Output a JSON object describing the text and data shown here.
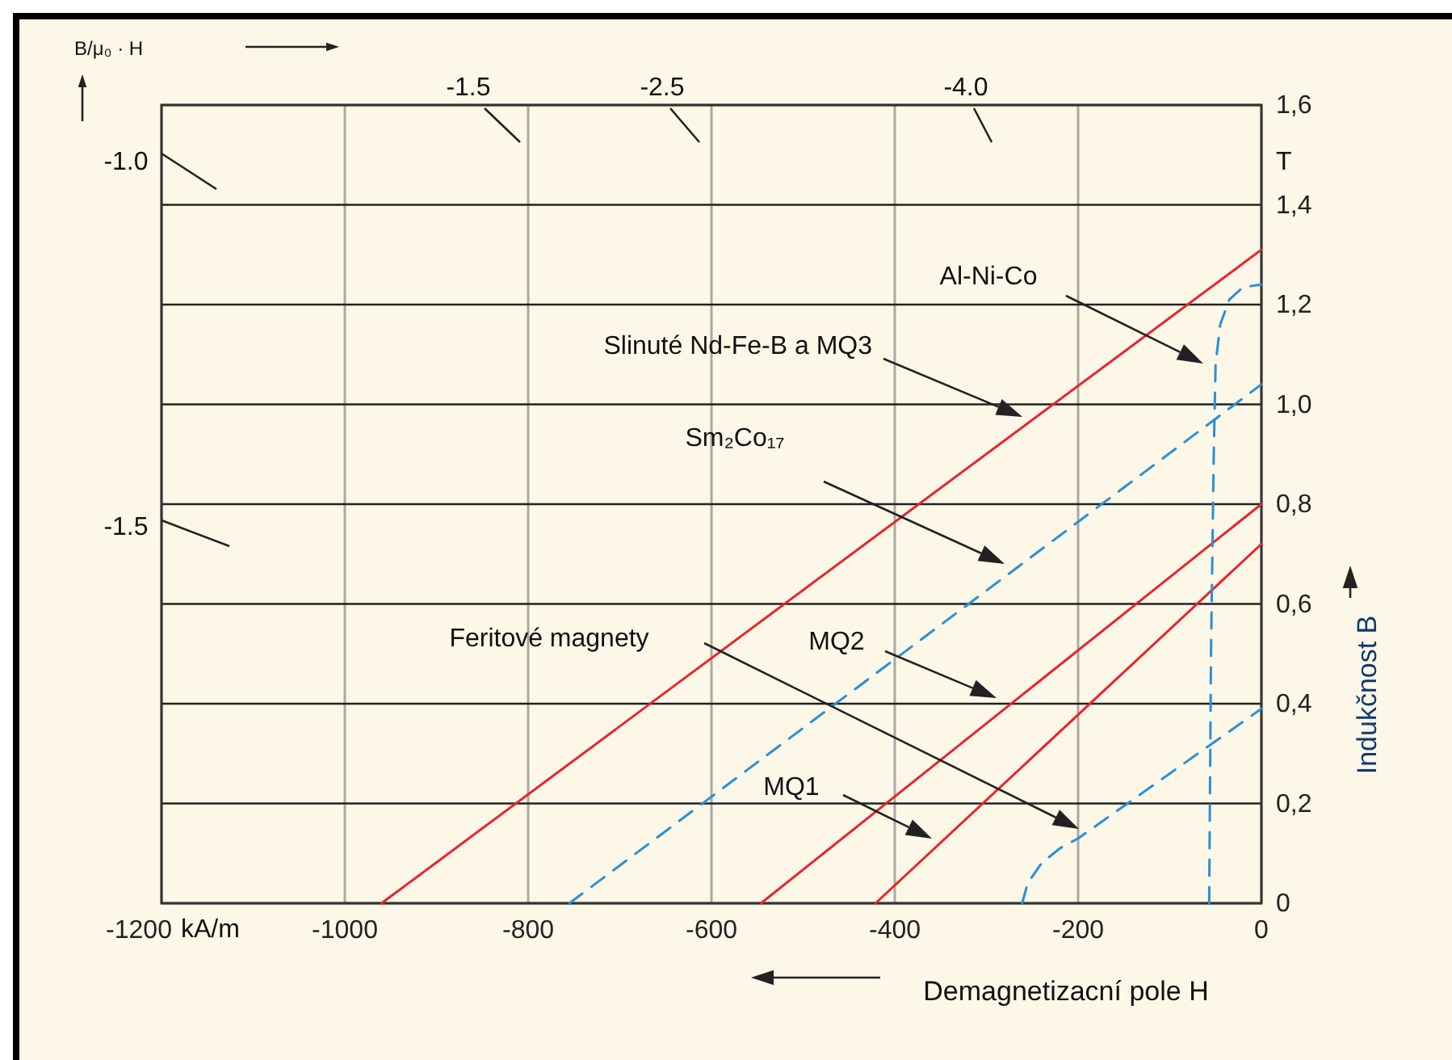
{
  "chart_data": {
    "type": "line",
    "xlabel": "Demagnetizacní pole H",
    "ylabel": "Indukčnost B",
    "xlim": [
      -1200,
      0
    ],
    "ylim": [
      0,
      1.6
    ],
    "xticks": [
      {
        "value": -1200,
        "label": "-1200"
      },
      {
        "value": -1000,
        "label": "-1000"
      },
      {
        "value": -800,
        "label": "-800"
      },
      {
        "value": -600,
        "label": "-600"
      },
      {
        "value": -400,
        "label": "-400"
      },
      {
        "value": -200,
        "label": "-200"
      },
      {
        "value": 0,
        "label": "0"
      }
    ],
    "yticks": [
      {
        "value": 0,
        "label": "0"
      },
      {
        "value": 0.2,
        "label": "0,2"
      },
      {
        "value": 0.4,
        "label": "0,4"
      },
      {
        "value": 0.6,
        "label": "0,6"
      },
      {
        "value": 0.8,
        "label": "0,8"
      },
      {
        "value": 1.0,
        "label": "1,0"
      },
      {
        "value": 1.2,
        "label": "1,2"
      },
      {
        "value": 1.4,
        "label": "1,4"
      },
      {
        "value": 1.6,
        "label": "1,6"
      }
    ],
    "grid": true,
    "series": [
      {
        "color": "#e8242c",
        "line_style": "solid",
        "x": [
          -960,
          0
        ],
        "values": [
          0,
          1.31
        ]
      },
      {
        "color": "#e8242c",
        "line_style": "solid",
        "x": [
          -546,
          0
        ],
        "values": [
          0,
          0.8
        ]
      },
      {
        "color": "#e8242c",
        "line_style": "solid",
        "x": [
          -421,
          0
        ],
        "values": [
          0,
          0.72
        ]
      },
      {
        "color": "#2a8fd6",
        "line_style": "dashed",
        "x": [
          -755,
          0
        ],
        "values": [
          0,
          1.04
        ]
      },
      {
        "color": "#2a8fd6",
        "line_style": "dashed",
        "x": [
          -261,
          -255,
          -240,
          -220,
          -200,
          -100,
          0
        ],
        "values": [
          0,
          0.04,
          0.08,
          0.11,
          0.13,
          0.26,
          0.39
        ]
      },
      {
        "color": "#2a8fd6",
        "line_style": "dashed",
        "x": [
          -57,
          -55,
          -52,
          -50,
          -45,
          -35,
          -20,
          0
        ],
        "values": [
          0,
          0.5,
          0.9,
          1.08,
          1.16,
          1.21,
          1.235,
          1.24
        ]
      }
    ],
    "annotations": [
      "B/μ₀ · H",
      "T",
      "kA/m",
      "-1.0",
      "-1.5",
      "-1.5",
      "-2.5",
      "-4.0",
      "Al-Ni-Co",
      "Slinuté Nd-Fe-B a MQ3",
      "Sm₂Co₁₇",
      "Feritové magnety",
      "MQ2",
      "MQ1"
    ]
  }
}
